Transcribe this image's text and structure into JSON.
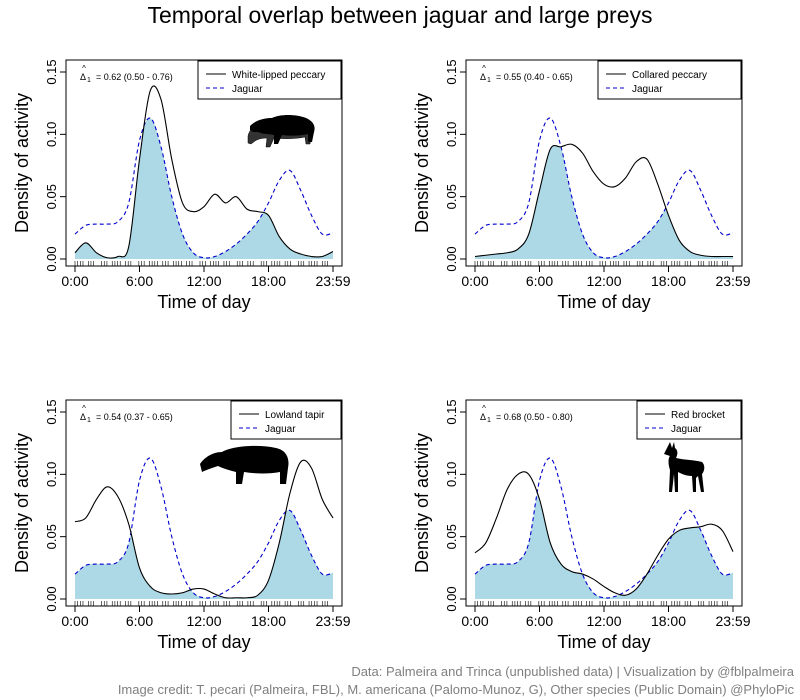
{
  "title": "Temporal overlap between jaguar and large preys",
  "credits": {
    "line1": "Data: Palmeira and Trinca (unpublished data) | Visualization by @fblpalmeira",
    "line2": "Image credit: T. pecari (Palmeira, FBL), M. americana (Palomo-Munoz, G), Other species (Public Domain) @PhyloPic"
  },
  "colors": {
    "prey_line": "#000000",
    "jaguar_line": "#0000cc",
    "overlap_fill": "#add8e6"
  },
  "chart_data": [
    {
      "type": "line",
      "xlabel": "Time of day",
      "ylabel": "Density of activity",
      "x_ticks": [
        "0:00",
        "6:00",
        "12:00",
        "18:00",
        "23:59"
      ],
      "y_ticks": [
        "0.00",
        "0.05",
        "0.10",
        "0.15"
      ],
      "xlim": [
        0,
        24
      ],
      "ylim": [
        0,
        0.16
      ],
      "overlap_label": "Δ",
      "overlap_subscript": "1",
      "overlap_text": "= 0.62 (0.50 - 0.76)",
      "legend_position": "top-right",
      "icon": "white-lipped-peccary-silhouette",
      "x": [
        0,
        1,
        2,
        3,
        4,
        5,
        6,
        7,
        8,
        9,
        10,
        11,
        12,
        13,
        14,
        15,
        16,
        17,
        18,
        19,
        20,
        21,
        22,
        23,
        24
      ],
      "series": [
        {
          "name": "White-lipped peccary",
          "style": "solid",
          "values": [
            0.005,
            0.013,
            0.005,
            0.001,
            0.002,
            0.01,
            0.08,
            0.135,
            0.128,
            0.08,
            0.045,
            0.038,
            0.042,
            0.052,
            0.045,
            0.05,
            0.04,
            0.038,
            0.035,
            0.018,
            0.008,
            0.004,
            0.002,
            0.002,
            0.006
          ]
        },
        {
          "name": "Jaguar",
          "style": "dashed",
          "values": [
            0.02,
            0.027,
            0.028,
            0.028,
            0.03,
            0.045,
            0.095,
            0.113,
            0.09,
            0.05,
            0.02,
            0.005,
            0.001,
            0.002,
            0.006,
            0.012,
            0.02,
            0.03,
            0.045,
            0.063,
            0.071,
            0.055,
            0.035,
            0.02,
            0.021
          ]
        }
      ]
    },
    {
      "type": "line",
      "xlabel": "Time of day",
      "ylabel": "Density of activity",
      "x_ticks": [
        "0:00",
        "6:00",
        "12:00",
        "18:00",
        "23:59"
      ],
      "y_ticks": [
        "0.00",
        "0.05",
        "0.10",
        "0.15"
      ],
      "xlim": [
        0,
        24
      ],
      "ylim": [
        0,
        0.16
      ],
      "overlap_label": "Δ",
      "overlap_subscript": "1",
      "overlap_text": "= 0.55 (0.40 - 0.65)",
      "legend_position": "top-right",
      "icon": "collared-peccary-silhouette",
      "x": [
        0,
        1,
        2,
        3,
        4,
        5,
        6,
        7,
        8,
        9,
        10,
        11,
        12,
        13,
        14,
        15,
        16,
        17,
        18,
        19,
        20,
        21,
        22,
        23,
        24
      ],
      "series": [
        {
          "name": "Collared peccary",
          "style": "solid",
          "values": [
            0.002,
            0.003,
            0.004,
            0.005,
            0.008,
            0.02,
            0.055,
            0.088,
            0.09,
            0.092,
            0.085,
            0.07,
            0.06,
            0.058,
            0.065,
            0.078,
            0.08,
            0.06,
            0.035,
            0.015,
            0.006,
            0.003,
            0.002,
            0.002,
            0.002
          ]
        },
        {
          "name": "Jaguar",
          "style": "dashed",
          "values": [
            0.02,
            0.027,
            0.028,
            0.028,
            0.03,
            0.045,
            0.095,
            0.113,
            0.09,
            0.05,
            0.02,
            0.005,
            0.001,
            0.002,
            0.006,
            0.012,
            0.02,
            0.03,
            0.045,
            0.063,
            0.071,
            0.055,
            0.035,
            0.02,
            0.021
          ]
        }
      ]
    },
    {
      "type": "line",
      "xlabel": "Time of day",
      "ylabel": "Density of activity",
      "x_ticks": [
        "0:00",
        "6:00",
        "12:00",
        "18:00",
        "23:59"
      ],
      "y_ticks": [
        "0.00",
        "0.05",
        "0.10",
        "0.15"
      ],
      "xlim": [
        0,
        24
      ],
      "ylim": [
        0,
        0.16
      ],
      "overlap_label": "Δ",
      "overlap_subscript": "1",
      "overlap_text": "= 0.54 (0.37 - 0.65)",
      "legend_position": "top-right",
      "icon": "lowland-tapir-silhouette",
      "x": [
        0,
        1,
        2,
        3,
        4,
        5,
        6,
        7,
        8,
        9,
        10,
        11,
        12,
        13,
        14,
        15,
        16,
        17,
        18,
        19,
        20,
        21,
        22,
        23,
        24
      ],
      "series": [
        {
          "name": "Lowland tapir",
          "style": "solid",
          "values": [
            0.062,
            0.065,
            0.08,
            0.09,
            0.082,
            0.06,
            0.025,
            0.01,
            0.005,
            0.004,
            0.005,
            0.008,
            0.008,
            0.004,
            0.001,
            0.001,
            0.001,
            0.003,
            0.015,
            0.045,
            0.085,
            0.11,
            0.105,
            0.08,
            0.065
          ]
        },
        {
          "name": "Jaguar",
          "style": "dashed",
          "values": [
            0.02,
            0.027,
            0.028,
            0.028,
            0.03,
            0.045,
            0.095,
            0.113,
            0.09,
            0.05,
            0.02,
            0.005,
            0.001,
            0.002,
            0.006,
            0.012,
            0.02,
            0.03,
            0.045,
            0.063,
            0.071,
            0.055,
            0.035,
            0.02,
            0.021
          ]
        }
      ]
    },
    {
      "type": "line",
      "xlabel": "Time of day",
      "ylabel": "Density of activity",
      "x_ticks": [
        "0:00",
        "6:00",
        "12:00",
        "18:00",
        "23:59"
      ],
      "y_ticks": [
        "0.00",
        "0.05",
        "0.10",
        "0.15"
      ],
      "xlim": [
        0,
        24
      ],
      "ylim": [
        0,
        0.16
      ],
      "overlap_label": "Δ",
      "overlap_subscript": "1",
      "overlap_text": "= 0.68 (0.50 - 0.80)",
      "legend_position": "top-right",
      "icon": "red-brocket-silhouette",
      "x": [
        0,
        1,
        2,
        3,
        4,
        5,
        6,
        7,
        8,
        9,
        10,
        11,
        12,
        13,
        14,
        15,
        16,
        17,
        18,
        19,
        20,
        21,
        22,
        23,
        24
      ],
      "series": [
        {
          "name": "Red brocket",
          "style": "solid",
          "values": [
            0.037,
            0.045,
            0.065,
            0.088,
            0.1,
            0.1,
            0.08,
            0.045,
            0.028,
            0.022,
            0.02,
            0.016,
            0.01,
            0.005,
            0.003,
            0.008,
            0.02,
            0.035,
            0.048,
            0.055,
            0.057,
            0.058,
            0.06,
            0.055,
            0.038
          ]
        },
        {
          "name": "Jaguar",
          "style": "dashed",
          "values": [
            0.02,
            0.027,
            0.028,
            0.028,
            0.03,
            0.045,
            0.095,
            0.113,
            0.09,
            0.05,
            0.02,
            0.005,
            0.001,
            0.002,
            0.006,
            0.012,
            0.02,
            0.03,
            0.045,
            0.063,
            0.071,
            0.055,
            0.035,
            0.02,
            0.021
          ]
        }
      ]
    }
  ]
}
